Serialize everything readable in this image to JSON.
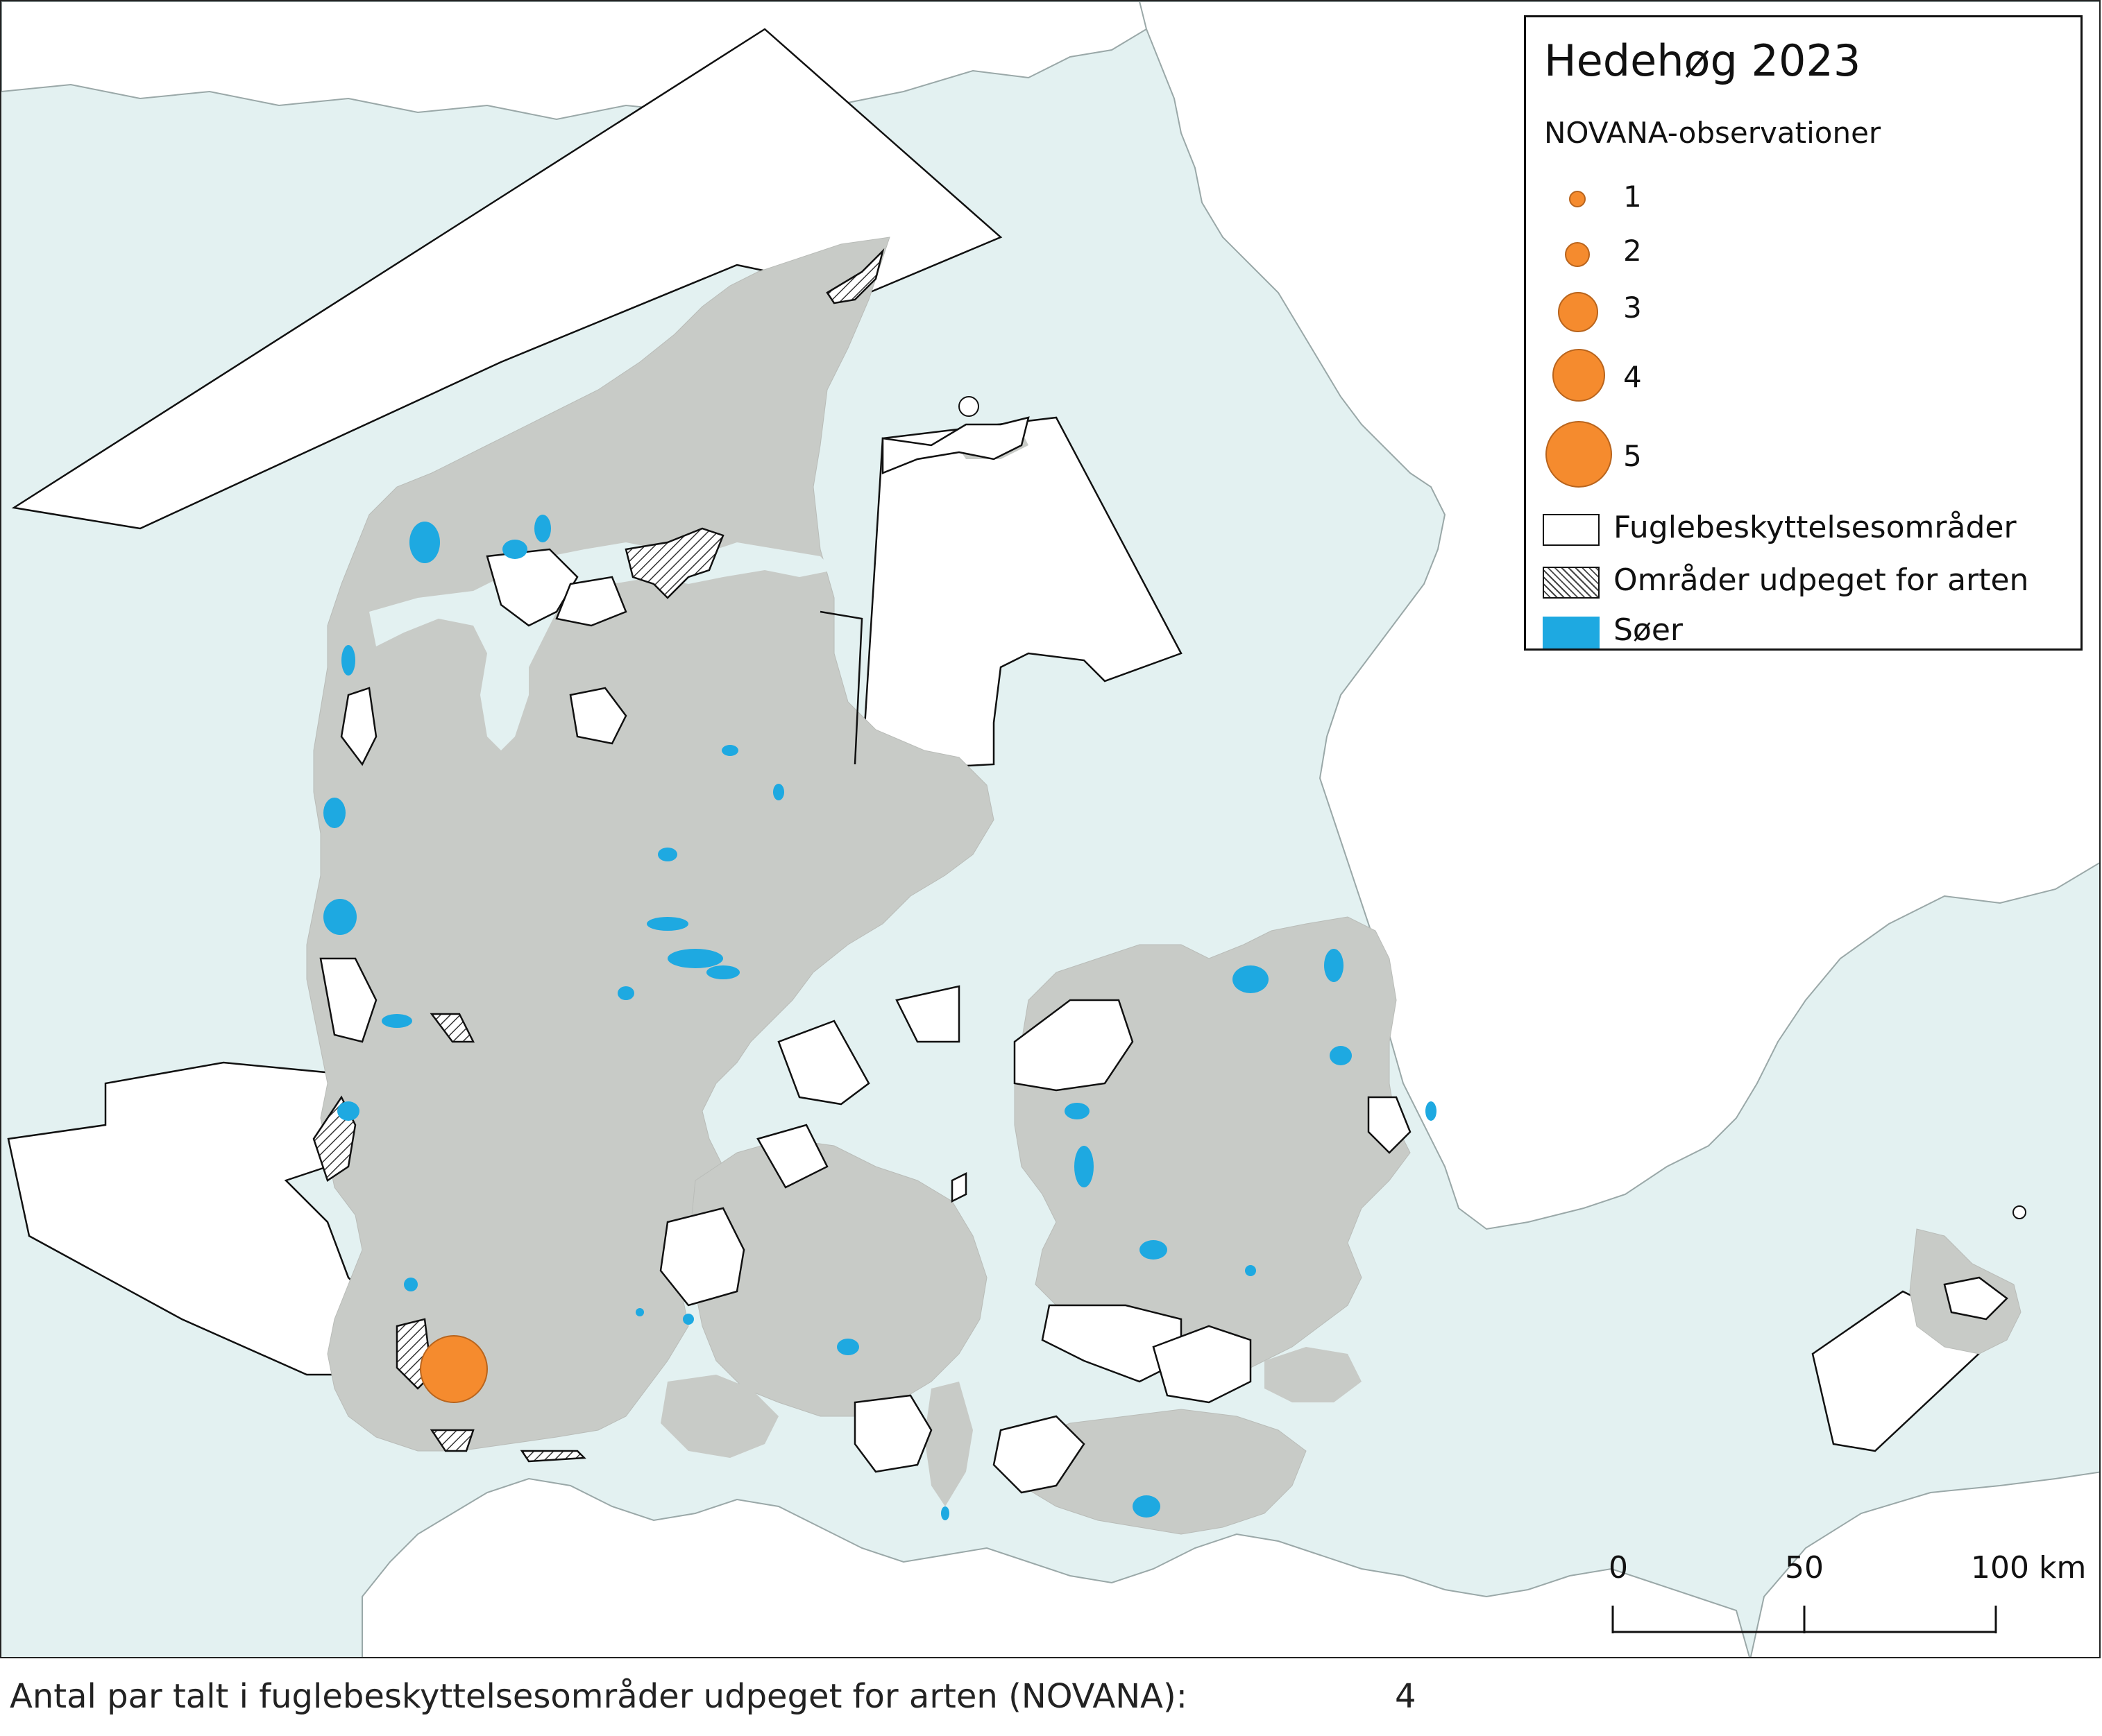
{
  "legend": {
    "title": "Hedehøg 2023",
    "subtitle": "NOVANA-observationer",
    "size_classes": [
      {
        "label": "1",
        "value": 1
      },
      {
        "label": "2",
        "value": 2
      },
      {
        "label": "3",
        "value": 3
      },
      {
        "label": "4",
        "value": 4
      },
      {
        "label": "5",
        "value": 5
      }
    ],
    "categories": [
      {
        "label": "Fuglebeskyttelsesområder",
        "style": "white-outline"
      },
      {
        "label": "Områder udpeget for arten",
        "style": "hatched"
      },
      {
        "label": "Søer",
        "style": "lake"
      }
    ]
  },
  "colors": {
    "sea": "#e3f1f1",
    "land": "#c8cbc7",
    "lake": "#1ea9e1",
    "observation": "#f58b2e",
    "outline": "#111111"
  },
  "scalebar": {
    "ticks": [
      "0",
      "50",
      "100 km"
    ]
  },
  "observations": [
    {
      "value": 5
    }
  ],
  "footer": {
    "label": "Antal par talt i fuglebeskyttelsesområder udpeget for arten (NOVANA):",
    "value": "4"
  }
}
